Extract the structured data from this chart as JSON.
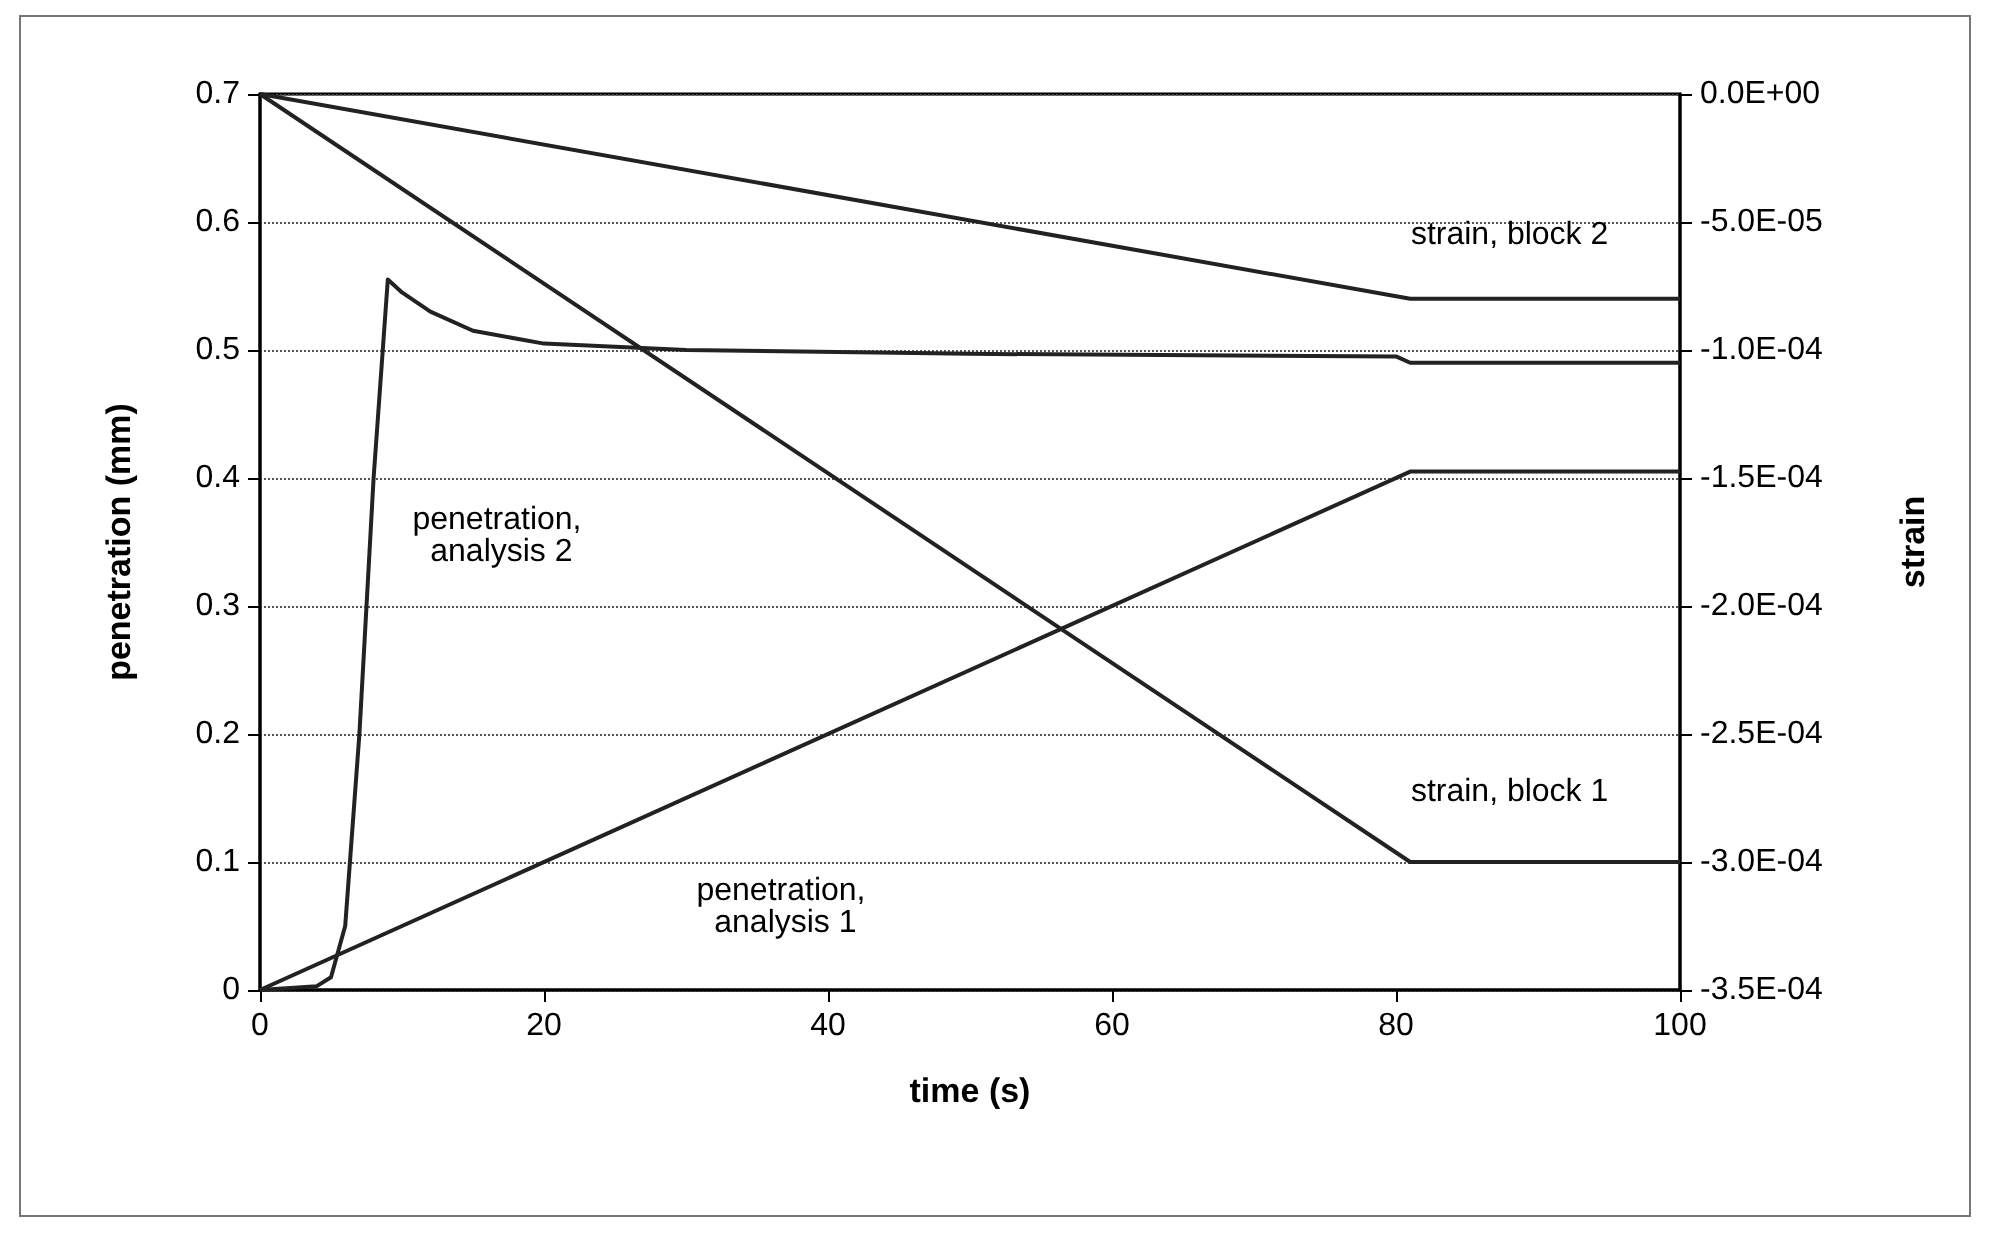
{
  "chart_data": {
    "type": "line",
    "xlabel": "time (s)",
    "ylabel": "penetration (mm)",
    "y2label": "strain",
    "xlim": [
      0,
      100
    ],
    "xticks": [
      0,
      20,
      40,
      60,
      80,
      100
    ],
    "ylim": [
      0,
      0.7
    ],
    "yticks": [
      0,
      0.1,
      0.2,
      0.3,
      0.4,
      0.5,
      0.6,
      0.7
    ],
    "y2lim": [
      -0.00035,
      0
    ],
    "y2ticks": [
      {
        "value": -0.00035,
        "label": "-3.5E-04"
      },
      {
        "value": -0.0003,
        "label": "-3.0E-04"
      },
      {
        "value": -0.00025,
        "label": "-2.5E-04"
      },
      {
        "value": -0.0002,
        "label": "-2.0E-04"
      },
      {
        "value": -0.00015,
        "label": "-1.5E-04"
      },
      {
        "value": -0.0001,
        "label": "-1.0E-04"
      },
      {
        "value": -5e-05,
        "label": "-5.0E-05"
      },
      {
        "value": 0,
        "label": "0.0E+00"
      }
    ],
    "grid": "y",
    "legend": false,
    "marker": "none",
    "line_style": "solid",
    "series": [
      {
        "name": "penetration, analysis 1",
        "color": "#222222",
        "x": [
          0,
          81,
          100
        ],
        "values": [
          0,
          0.405,
          0.405
        ]
      },
      {
        "name": "penetration, analysis 2",
        "color": "#222222",
        "x": [
          0,
          4,
          5,
          6,
          7,
          8,
          9,
          10,
          12,
          15,
          20,
          30,
          50,
          80,
          81,
          100
        ],
        "values": [
          0,
          0.003,
          0.01,
          0.05,
          0.2,
          0.4,
          0.555,
          0.545,
          0.53,
          0.515,
          0.505,
          0.5,
          0.497,
          0.495,
          0.49,
          0.49
        ]
      },
      {
        "name": "strain, block 1",
        "color": "#222222",
        "axis": "y2",
        "x": [
          0,
          81,
          100
        ],
        "values": [
          0,
          -0.0003,
          -0.0003
        ]
      },
      {
        "name": "strain, block 2",
        "color": "#222222",
        "axis": "y2",
        "x": [
          0,
          81,
          100
        ],
        "values": [
          0,
          -8e-05,
          -8e-05
        ]
      }
    ]
  }
}
